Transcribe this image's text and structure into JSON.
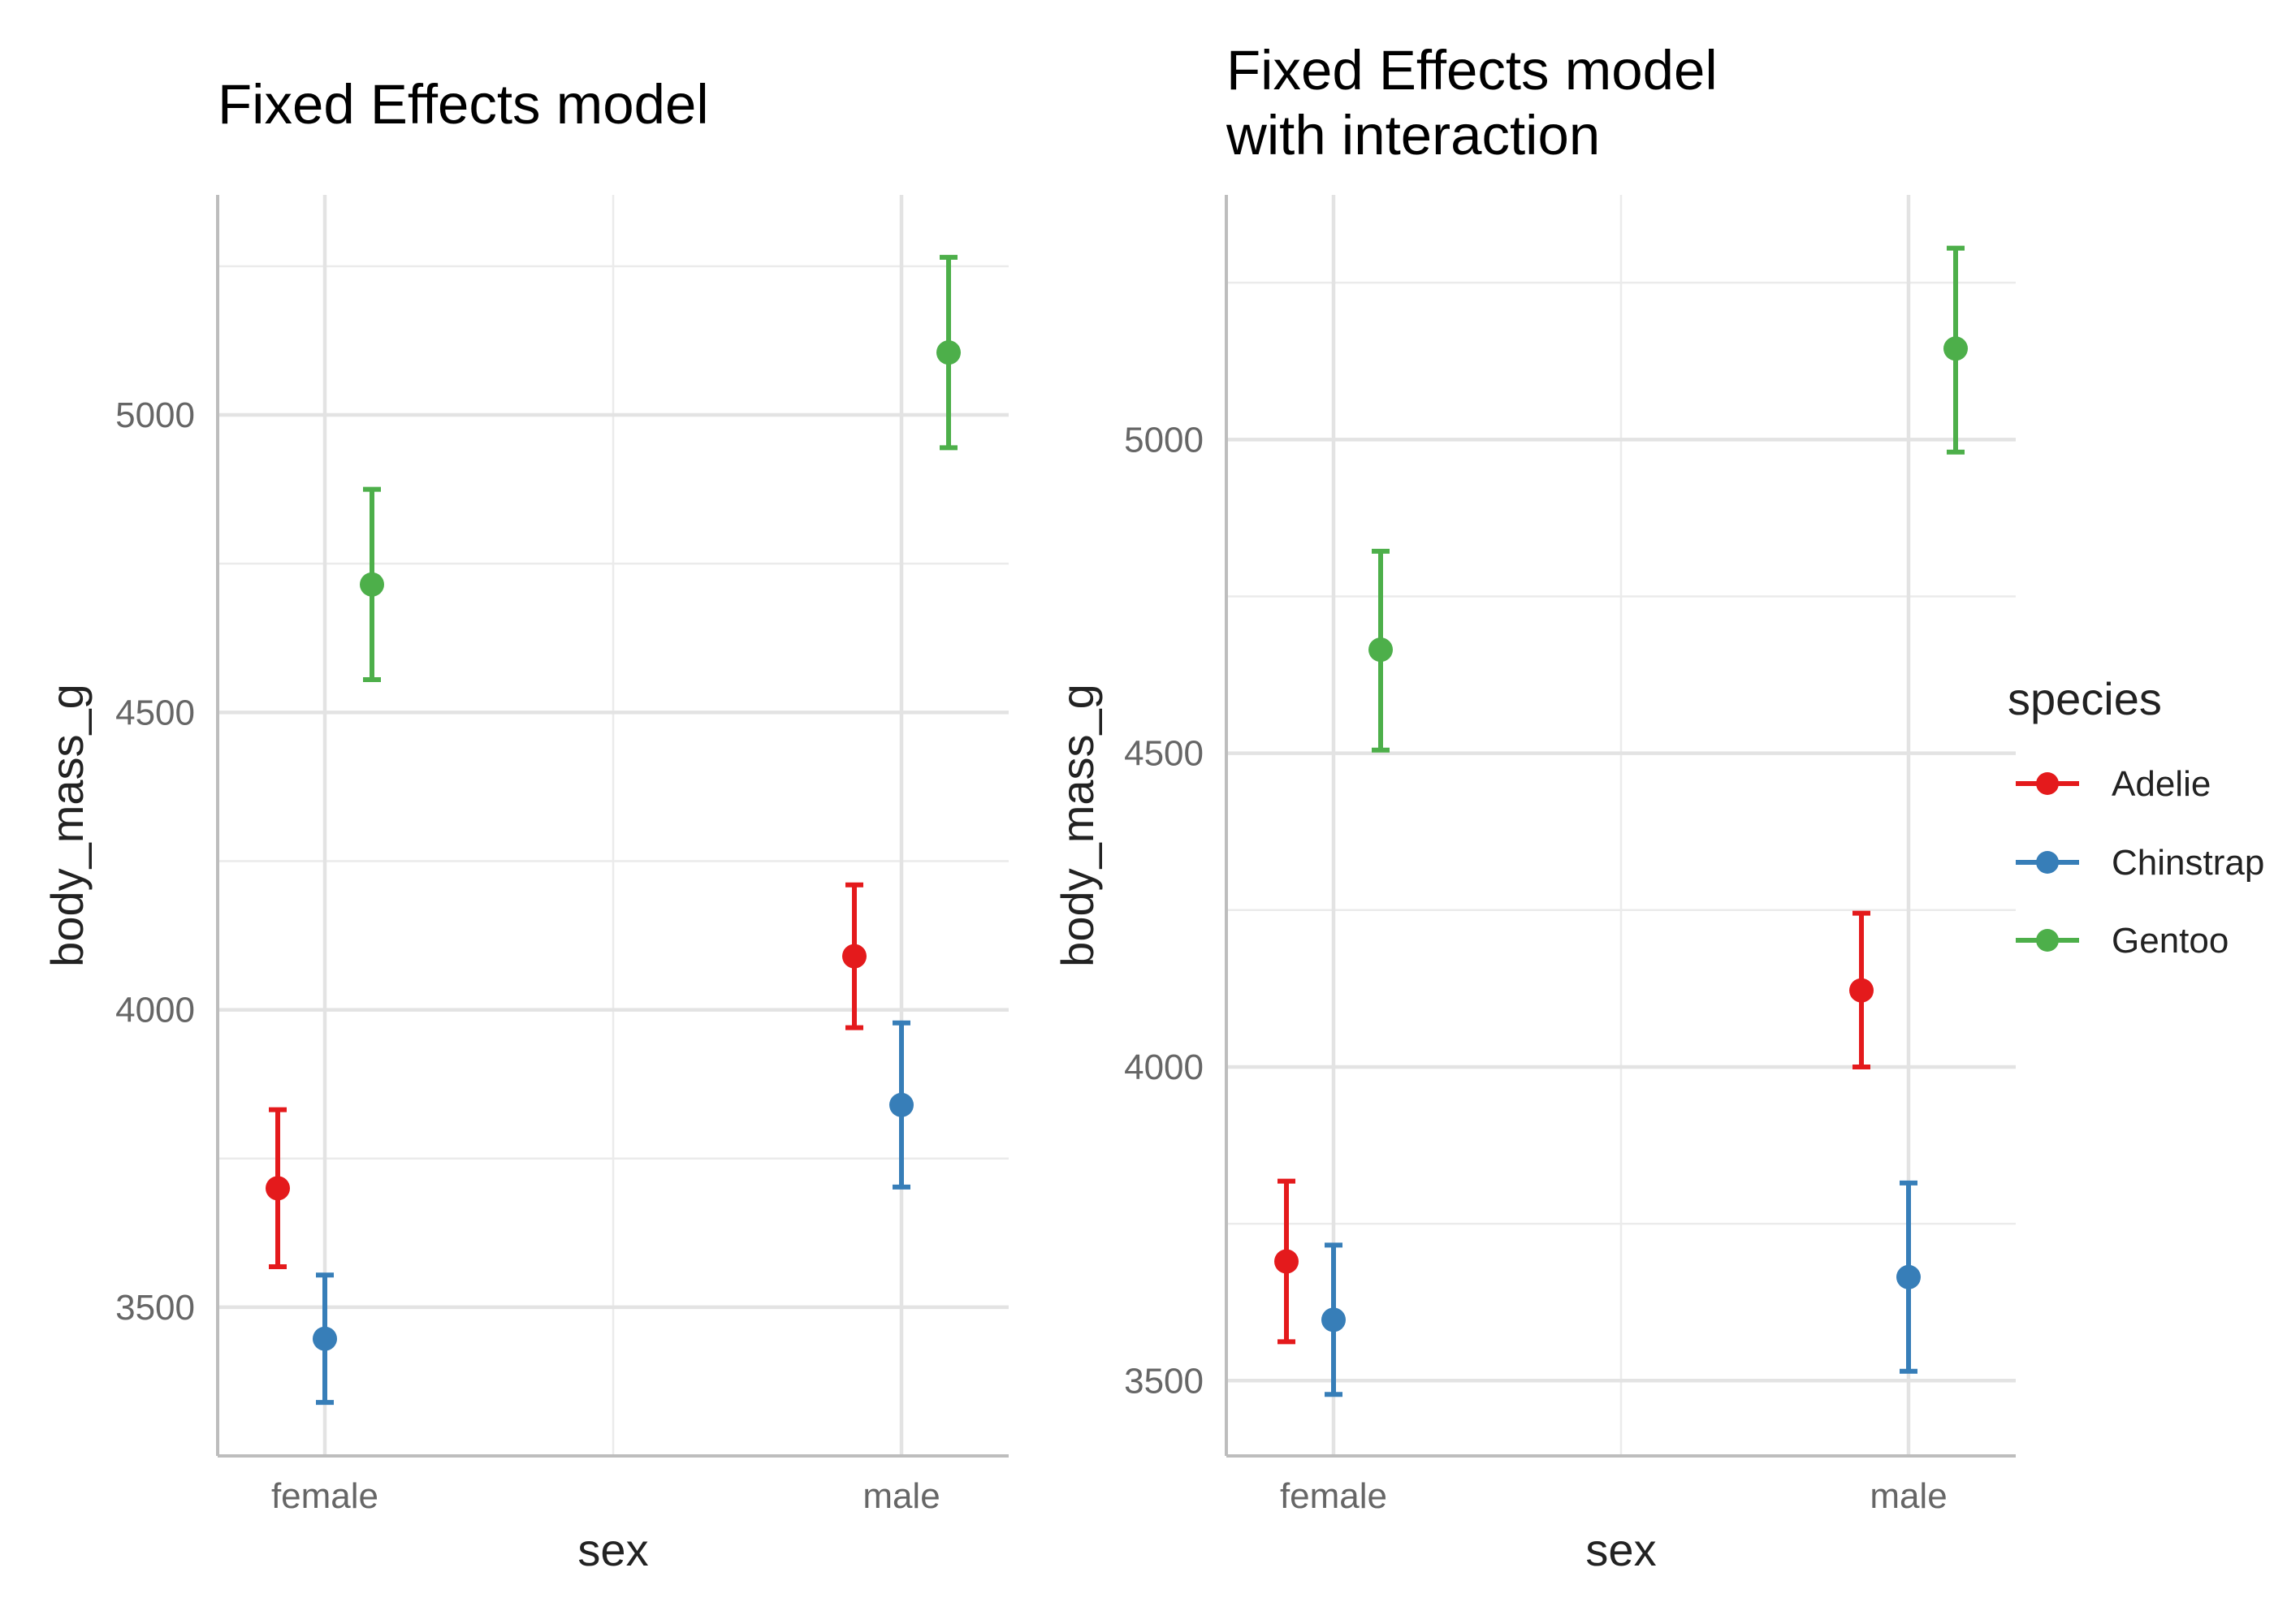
{
  "chart_data": [
    {
      "type": "scatter",
      "title": [
        "Fixed Effects model"
      ],
      "xlabel": "sex",
      "ylabel": "body_mass_g",
      "categories": [
        "female",
        "male"
      ],
      "yticks": [
        3500,
        4000,
        4500,
        5000
      ],
      "ylim": [
        3250,
        5370
      ],
      "grid": true,
      "series": [
        {
          "name": "Adelie",
          "color": "#E41A1C",
          "points": [
            {
              "x": "female",
              "y": 3700,
              "low": 3568,
              "high": 3832
            },
            {
              "x": "male",
              "y": 4090,
              "low": 3970,
              "high": 4210
            }
          ]
        },
        {
          "name": "Chinstrap",
          "color": "#377EB8",
          "points": [
            {
              "x": "female",
              "y": 3447,
              "low": 3340,
              "high": 3554
            },
            {
              "x": "male",
              "y": 3840,
              "low": 3702,
              "high": 3978
            }
          ]
        },
        {
          "name": "Gentoo",
          "color": "#4DAF4A",
          "points": [
            {
              "x": "female",
              "y": 4715,
              "low": 4555,
              "high": 4875
            },
            {
              "x": "male",
              "y": 5105,
              "low": 4945,
              "high": 5265
            }
          ]
        }
      ]
    },
    {
      "type": "scatter",
      "title": [
        "Fixed Effects model",
        "with interaction"
      ],
      "xlabel": "sex",
      "ylabel": "body_mass_g",
      "categories": [
        "female",
        "male"
      ],
      "yticks": [
        3500,
        4000,
        4500,
        5000
      ],
      "ylim": [
        3380,
        5390
      ],
      "grid": true,
      "series": [
        {
          "name": "Adelie",
          "color": "#E41A1C",
          "points": [
            {
              "x": "female",
              "y": 3690,
              "low": 3562,
              "high": 3818
            },
            {
              "x": "male",
              "y": 4122,
              "low": 4000,
              "high": 4245
            }
          ]
        },
        {
          "name": "Chinstrap",
          "color": "#377EB8",
          "points": [
            {
              "x": "female",
              "y": 3597,
              "low": 3478,
              "high": 3716
            },
            {
              "x": "male",
              "y": 3665,
              "low": 3515,
              "high": 3815
            }
          ]
        },
        {
          "name": "Gentoo",
          "color": "#4DAF4A",
          "points": [
            {
              "x": "female",
              "y": 4665,
              "low": 4505,
              "high": 4822
            },
            {
              "x": "male",
              "y": 5145,
              "low": 4980,
              "high": 5305
            }
          ]
        }
      ]
    }
  ],
  "legend": {
    "title": "species",
    "position": "right",
    "items": [
      {
        "label": "Adelie",
        "color": "#E41A1C"
      },
      {
        "label": "Chinstrap",
        "color": "#377EB8"
      },
      {
        "label": "Gentoo",
        "color": "#4DAF4A"
      }
    ]
  }
}
